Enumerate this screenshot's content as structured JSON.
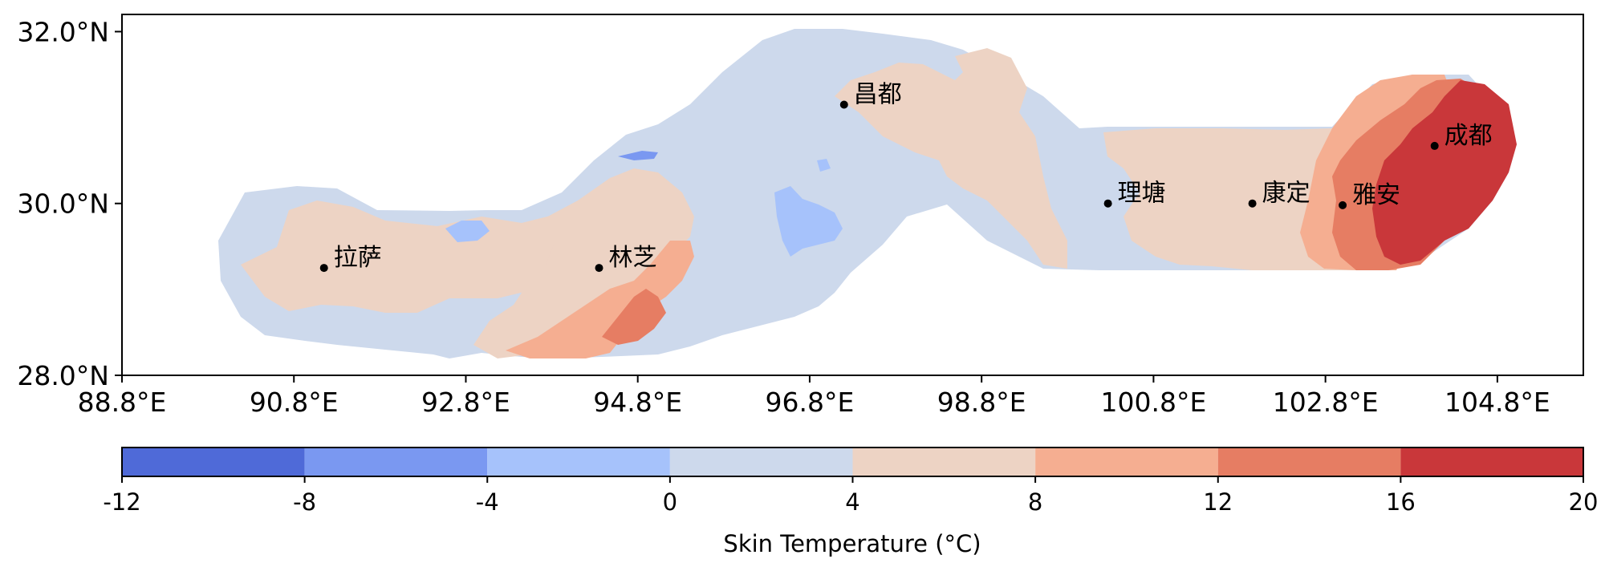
{
  "map": {
    "lat_ticks": [
      {
        "value": 32.0,
        "label": "32.0°N"
      },
      {
        "value": 30.0,
        "label": "30.0°N"
      },
      {
        "value": 28.0,
        "label": "28.0°N"
      }
    ],
    "lon_ticks": [
      {
        "value": 88.8,
        "label": "88.8°E"
      },
      {
        "value": 90.8,
        "label": "90.8°E"
      },
      {
        "value": 92.8,
        "label": "92.8°E"
      },
      {
        "value": 94.8,
        "label": "94.8°E"
      },
      {
        "value": 96.8,
        "label": "96.8°E"
      },
      {
        "value": 98.8,
        "label": "98.8°E"
      },
      {
        "value": 100.8,
        "label": "100.8°E"
      },
      {
        "value": 102.8,
        "label": "102.8°E"
      },
      {
        "value": 104.8,
        "label": "104.8°E"
      }
    ],
    "extent": {
      "lon_min": 88.8,
      "lon_max": 105.8,
      "lat_min": 28.0,
      "lat_max": 32.2
    },
    "cities": [
      {
        "name": "拉萨",
        "lon": 91.15,
        "lat": 29.25
      },
      {
        "name": "林芝",
        "lon": 94.35,
        "lat": 29.25
      },
      {
        "name": "昌都",
        "lon": 97.2,
        "lat": 31.15
      },
      {
        "name": "理塘",
        "lon": 100.27,
        "lat": 30.0
      },
      {
        "name": "康定",
        "lon": 101.95,
        "lat": 30.0
      },
      {
        "name": "雅安",
        "lon": 103.0,
        "lat": 29.98
      },
      {
        "name": "成都",
        "lon": 104.07,
        "lat": 30.67
      }
    ]
  },
  "colorbar": {
    "label": "Skin Temperature (°C)",
    "ticks": [
      "-12",
      "-8",
      "-4",
      "0",
      "4",
      "8",
      "12",
      "16",
      "20"
    ],
    "bins": [
      {
        "from": -12,
        "to": -8,
        "color": "#4f6ad8"
      },
      {
        "from": -8,
        "to": -4,
        "color": "#7a98f1"
      },
      {
        "from": -4,
        "to": 0,
        "color": "#a6c2fb"
      },
      {
        "from": 0,
        "to": 4,
        "color": "#cdd9ec"
      },
      {
        "from": 4,
        "to": 8,
        "color": "#edd3c4"
      },
      {
        "from": 8,
        "to": 12,
        "color": "#f5ae91"
      },
      {
        "from": 12,
        "to": 16,
        "color": "#e67d63"
      },
      {
        "from": 16,
        "to": 20,
        "color": "#c9373a"
      }
    ]
  }
}
